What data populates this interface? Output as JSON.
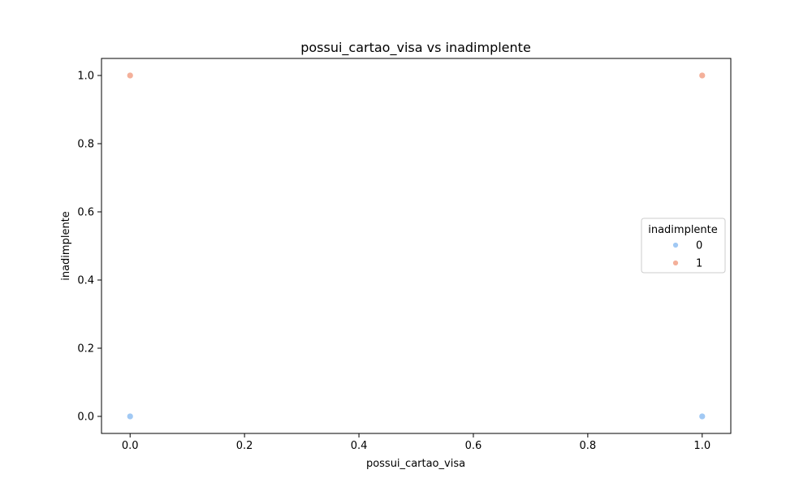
{
  "chart_data": {
    "type": "scatter",
    "title": "possui_cartao_visa vs inadimplente",
    "xlabel": "possui_cartao_visa",
    "ylabel": "inadimplente",
    "xlim": [
      -0.05,
      1.05
    ],
    "ylim": [
      -0.05,
      1.05
    ],
    "xticks": [
      "0.0",
      "0.2",
      "0.4",
      "0.6",
      "0.8",
      "1.0"
    ],
    "yticks": [
      "0.0",
      "0.2",
      "0.4",
      "0.6",
      "0.8",
      "1.0"
    ],
    "grid": false,
    "legend": {
      "title": "inadimplente",
      "placement": "center-right"
    },
    "series": [
      {
        "name": "0",
        "color": "#a1c9f4",
        "points": [
          [
            0,
            0
          ],
          [
            1,
            0
          ]
        ]
      },
      {
        "name": "1",
        "color": "#f4b09a",
        "points": [
          [
            0,
            1
          ],
          [
            1,
            1
          ]
        ]
      }
    ]
  }
}
